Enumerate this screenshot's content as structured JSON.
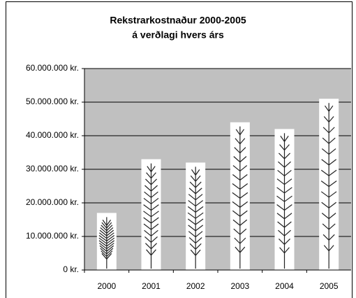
{
  "chart_data": {
    "type": "bar",
    "title": "Rekstrarkostnaður 2000-2005",
    "subtitle": "á verðlagi hvers árs",
    "categories": [
      "2000",
      "2001",
      "2002",
      "2003",
      "2004",
      "2005"
    ],
    "values": [
      17000000,
      33000000,
      32000000,
      44000000,
      42000000,
      51000000
    ],
    "color": "#ffffff",
    "ylim": [
      0,
      60000000
    ],
    "yticks": [
      {
        "value": 0,
        "label": "0 kr."
      },
      {
        "value": 10000000,
        "label": "10.000.000 kr."
      },
      {
        "value": 20000000,
        "label": "20.000.000 kr."
      },
      {
        "value": 30000000,
        "label": "30.000.000 kr."
      },
      {
        "value": 40000000,
        "label": "40.000.000 kr."
      },
      {
        "value": 50000000,
        "label": "50.000.000 kr."
      },
      {
        "value": 60000000,
        "label": "60.000.000 kr."
      }
    ],
    "grid": true
  }
}
